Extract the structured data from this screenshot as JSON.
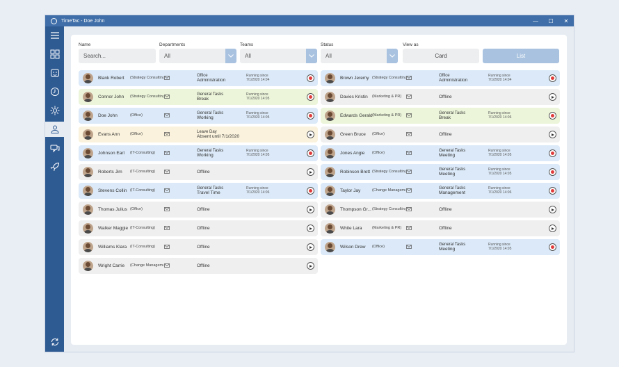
{
  "window": {
    "title": "TimeTac - Doe John"
  },
  "filters": {
    "name_label": "Name",
    "name_placeholder": "Search...",
    "departments_label": "Departments",
    "departments_value": "All",
    "teams_label": "Teams",
    "teams_value": "All",
    "status_label": "Status",
    "status_value": "All",
    "view_label": "View as",
    "card_label": "Card",
    "list_label": "List"
  },
  "colors": {
    "accent": "#2f5b93",
    "working": "#dbe9f8",
    "break": "#ecf5da",
    "leave": "#faf2dc",
    "offline": "#efefef",
    "stop": "#e03b3b"
  },
  "left": [
    {
      "name": "Blank Robert",
      "dept": "(Strategy Consulting)",
      "act1": "Office",
      "act2": "Administration",
      "run1": "Running since",
      "run2": "7/1/2020 14:04",
      "state": "stop",
      "color": "blue"
    },
    {
      "name": "Connor John",
      "dept": "(Strategy Consulting)",
      "act1": "General Tasks",
      "act2": "Break",
      "run1": "Running since",
      "run2": "7/1/2020 14:05",
      "state": "stop",
      "color": "green"
    },
    {
      "name": "Doe John",
      "dept": "(Office)",
      "act1": "General Tasks",
      "act2": "Working",
      "run1": "Running since",
      "run2": "7/1/2020 14:05",
      "state": "stop",
      "color": "blue"
    },
    {
      "name": "Evans Ann",
      "dept": "(Office)",
      "act1": "Leave Day",
      "act2": "Absent until 7/1/2020",
      "run1": "",
      "run2": "",
      "state": "play",
      "color": "yellow"
    },
    {
      "name": "Johnson Earl",
      "dept": "(IT-Consulting)",
      "act1": "General Tasks",
      "act2": "Working",
      "run1": "Running since",
      "run2": "7/1/2020 14:05",
      "state": "stop",
      "color": "blue"
    },
    {
      "name": "Roberts Jim",
      "dept": "(IT-Consulting)",
      "act1": "",
      "act2": "Offline",
      "run1": "",
      "run2": "",
      "state": "play",
      "color": "gray"
    },
    {
      "name": "Stevens Collin",
      "dept": "(IT-Consulting)",
      "act1": "General Tasks",
      "act2": "Travel Time",
      "run1": "Running since",
      "run2": "7/1/2020 14:06",
      "state": "stop",
      "color": "blue"
    },
    {
      "name": "Thomas Julius",
      "dept": "(Office)",
      "act1": "",
      "act2": "Offline",
      "run1": "",
      "run2": "",
      "state": "play",
      "color": "gray"
    },
    {
      "name": "Walker Maggie",
      "dept": "(IT-Consulting)",
      "act1": "",
      "act2": "Offline",
      "run1": "",
      "run2": "",
      "state": "play",
      "color": "gray"
    },
    {
      "name": "Williams Klara",
      "dept": "(IT-Consulting)",
      "act1": "",
      "act2": "Offline",
      "run1": "",
      "run2": "",
      "state": "play",
      "color": "gray"
    },
    {
      "name": "Wright Carrie",
      "dept": "(Change Management)",
      "act1": "",
      "act2": "Offline",
      "run1": "",
      "run2": "",
      "state": "play",
      "color": "gray"
    }
  ],
  "right": [
    {
      "name": "Brown Jeremy",
      "dept": "(Strategy Consulting)",
      "act1": "Office",
      "act2": "Administration",
      "run1": "Running since",
      "run2": "7/1/2020 14:04",
      "state": "stop",
      "color": "blue"
    },
    {
      "name": "Davies Kristin",
      "dept": "(Marketing & PR)",
      "act1": "",
      "act2": "Offline",
      "run1": "",
      "run2": "",
      "state": "play",
      "color": "gray"
    },
    {
      "name": "Edwards Gerald",
      "dept": "(Marketing & PR)",
      "act1": "General Tasks",
      "act2": "Break",
      "run1": "Running since",
      "run2": "7/1/2020 14:06",
      "state": "stop",
      "color": "green"
    },
    {
      "name": "Green Bruce",
      "dept": "(Office)",
      "act1": "",
      "act2": "Offline",
      "run1": "",
      "run2": "",
      "state": "play",
      "color": "gray"
    },
    {
      "name": "Jones Angie",
      "dept": "(Office)",
      "act1": "General Tasks",
      "act2": "Meeting",
      "run1": "Running since",
      "run2": "7/1/2020 14:05",
      "state": "stop",
      "color": "blue"
    },
    {
      "name": "Robinson Brett",
      "dept": "(Strategy Consulting)",
      "act1": "General Tasks",
      "act2": "Meeting",
      "run1": "Running since",
      "run2": "7/1/2020 14:05",
      "state": "stop",
      "color": "blue"
    },
    {
      "name": "Taylor Jay",
      "dept": "(Change Management)",
      "act1": "General Tasks",
      "act2": "Management",
      "run1": "Running since",
      "run2": "7/1/2020 14:06",
      "state": "stop",
      "color": "blue"
    },
    {
      "name": "Thompson Gr...",
      "dept": "(Strategy Consulting)",
      "act1": "",
      "act2": "Offline",
      "run1": "",
      "run2": "",
      "state": "play",
      "color": "gray"
    },
    {
      "name": "White Lara",
      "dept": "(Marketing & PR)",
      "act1": "",
      "act2": "Offline",
      "run1": "",
      "run2": "",
      "state": "play",
      "color": "gray"
    },
    {
      "name": "Wilson Drew",
      "dept": "(Office)",
      "act1": "General Tasks",
      "act2": "Meeting",
      "run1": "Running since",
      "run2": "7/1/2020 14:05",
      "state": "stop",
      "color": "blue"
    }
  ]
}
